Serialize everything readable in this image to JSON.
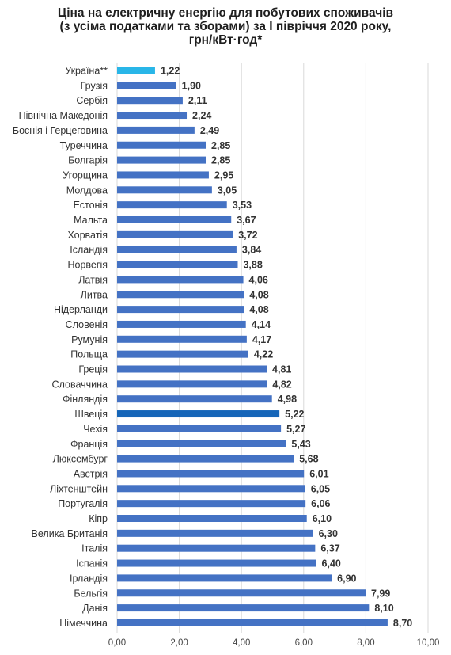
{
  "chart_data": {
    "type": "bar",
    "orientation": "horizontal",
    "title_lines": [
      "Ціна на електричну енергію для побутових споживачів",
      "(з усіма податками та зборами) за І  півріччя 2020 року,",
      "грн/кВт·год*"
    ],
    "categories": [
      "Україна**",
      "Грузія",
      "Сербія",
      "Північна Македонія",
      "Боснія і Герцеговина",
      "Туреччина",
      "Болгарія",
      "Угорщина",
      "Молдова",
      "Естонія",
      "Мальта",
      "Хорватія",
      "Ісландія",
      "Норвегія",
      "Латвія",
      "Литва",
      "Нідерланди",
      "Словенія",
      "Румунія",
      "Польща",
      "Греція",
      "Словаччина",
      "Фінляндія",
      "Швеція",
      "Чехія",
      "Франція",
      "Люксембург",
      "Австрія",
      "Ліхтенштейн",
      "Португалія",
      "Кіпр",
      "Велика Британія",
      "Італія",
      "Іспанія",
      "Ірландія",
      "Бельгія",
      "Данія",
      "Німеччина"
    ],
    "values": [
      1.22,
      1.9,
      2.11,
      2.24,
      2.49,
      2.85,
      2.85,
      2.95,
      3.05,
      3.53,
      3.67,
      3.72,
      3.84,
      3.88,
      4.06,
      4.08,
      4.08,
      4.14,
      4.17,
      4.22,
      4.81,
      4.82,
      4.98,
      5.22,
      5.27,
      5.43,
      5.68,
      6.01,
      6.05,
      6.06,
      6.1,
      6.3,
      6.37,
      6.4,
      6.9,
      7.99,
      8.1,
      8.7
    ],
    "value_labels": [
      "1,22",
      "1,90",
      "2,11",
      "2,24",
      "2,49",
      "2,85",
      "2,85",
      "2,95",
      "3,05",
      "3,53",
      "3,67",
      "3,72",
      "3,84",
      "3,88",
      "4,06",
      "4,08",
      "4,08",
      "4,14",
      "4,17",
      "4,22",
      "4,81",
      "4,82",
      "4,98",
      "5,22",
      "5,27",
      "5,43",
      "5,68",
      "6,01",
      "6,05",
      "6,06",
      "6,10",
      "6,30",
      "6,37",
      "6,40",
      "6,90",
      "7,99",
      "8,10",
      "8,70"
    ],
    "bar_colors": {
      "default": "#4472c4",
      "Україна**": "#29b6e8",
      "Швеція": "#1565b8"
    },
    "xlim": [
      0,
      10
    ],
    "xticks": [
      0,
      2,
      4,
      6,
      8,
      10
    ],
    "xtick_labels": [
      "0,00",
      "2,00",
      "4,00",
      "6,00",
      "8,00",
      "10,00"
    ],
    "grid": "vertical",
    "gridline_color": "#d9d9d9",
    "text_color": "#333333"
  }
}
